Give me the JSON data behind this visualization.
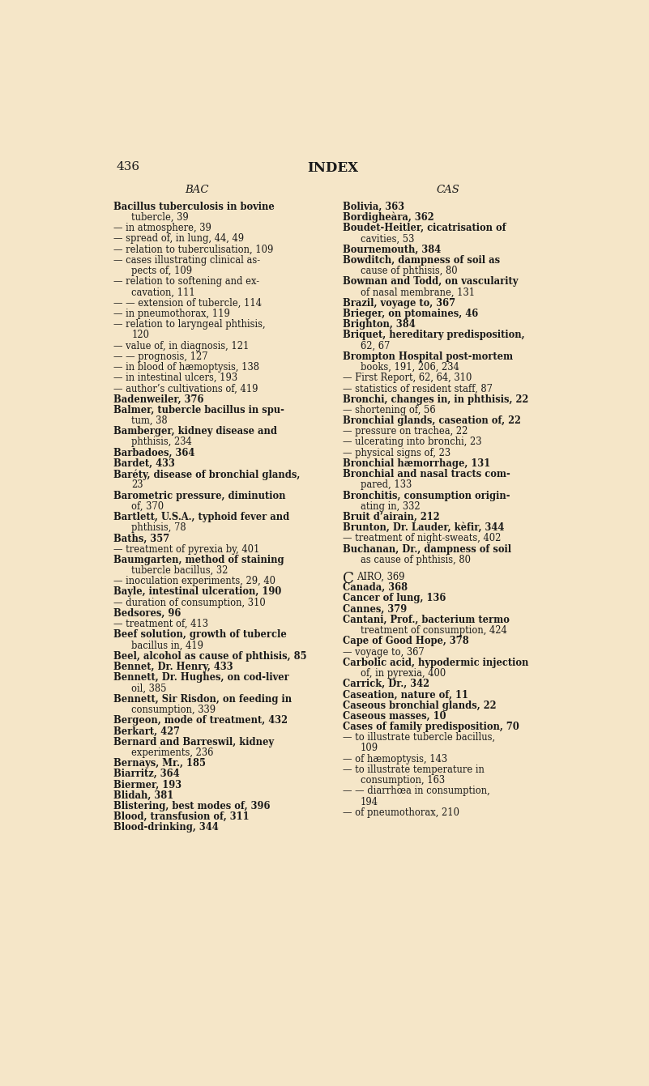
{
  "bg_color": "#f5e6c8",
  "page_number": "436",
  "title_center": "INDEX",
  "left_header": "BAC",
  "right_header": "CAS",
  "left_col_lines": [
    {
      "text": "Bacillus tuberculosis in bovine",
      "bold": true,
      "indent": 0
    },
    {
      "text": "tubercle, 39",
      "bold": false,
      "indent": 1
    },
    {
      "text": "— in atmosphere, 39",
      "bold": false,
      "indent": 0
    },
    {
      "text": "— spread of, in lung, 44, 49",
      "bold": false,
      "indent": 0
    },
    {
      "text": "— relation to tuberculisation, 109",
      "bold": false,
      "indent": 0
    },
    {
      "text": "— cases illustrating clinical as-",
      "bold": false,
      "indent": 0
    },
    {
      "text": "pects of, 109",
      "bold": false,
      "indent": 1
    },
    {
      "text": "— relation to softening and ex-",
      "bold": false,
      "indent": 0
    },
    {
      "text": "cavation, 111",
      "bold": false,
      "indent": 1
    },
    {
      "text": "— — extension of tubercle, 114",
      "bold": false,
      "indent": 0
    },
    {
      "text": "— in pneumothorax, 119",
      "bold": false,
      "indent": 0
    },
    {
      "text": "— relation to laryngeal phthisis,",
      "bold": false,
      "indent": 0
    },
    {
      "text": "120",
      "bold": false,
      "indent": 1
    },
    {
      "text": "— value of, in diagnosis, 121",
      "bold": false,
      "indent": 0
    },
    {
      "text": "— — prognosis, 127",
      "bold": false,
      "indent": 0
    },
    {
      "text": "— in blood of hæmoptysis, 138",
      "bold": false,
      "indent": 0
    },
    {
      "text": "— in intestinal ulcers, 193",
      "bold": false,
      "indent": 0
    },
    {
      "text": "— author’s cultivations of, 419",
      "bold": false,
      "indent": 0
    },
    {
      "text": "Badenweiler, 376",
      "bold": true,
      "indent": 0
    },
    {
      "text": "Balmer, tubercle bacillus in spu-",
      "bold": true,
      "indent": 0
    },
    {
      "text": "tum, 38",
      "bold": false,
      "indent": 1
    },
    {
      "text": "Bamberger, kidney disease and",
      "bold": true,
      "indent": 0
    },
    {
      "text": "phthisis, 234",
      "bold": false,
      "indent": 1
    },
    {
      "text": "Barbadoes, 364",
      "bold": true,
      "indent": 0
    },
    {
      "text": "Bardet, 433",
      "bold": true,
      "indent": 0
    },
    {
      "text": "Baréty, disease of bronchial glands,",
      "bold": true,
      "indent": 0
    },
    {
      "text": "23",
      "bold": false,
      "indent": 1
    },
    {
      "text": "Barometric pressure, diminution",
      "bold": true,
      "indent": 0
    },
    {
      "text": "of, 370",
      "bold": false,
      "indent": 1
    },
    {
      "text": "Bartlett, U.S.A., typhoid fever and",
      "bold": true,
      "indent": 0
    },
    {
      "text": "phthisis, 78",
      "bold": false,
      "indent": 1
    },
    {
      "text": "Baths, 357",
      "bold": true,
      "indent": 0
    },
    {
      "text": "— treatment of pyrexia by, 401",
      "bold": false,
      "indent": 0
    },
    {
      "text": "Baumgarten, method of staining",
      "bold": true,
      "indent": 0
    },
    {
      "text": "tubercle bacillus, 32",
      "bold": false,
      "indent": 1
    },
    {
      "text": "— inoculation experiments, 29, 40",
      "bold": false,
      "indent": 0
    },
    {
      "text": "Bayle, intestinal ulceration, 190",
      "bold": true,
      "indent": 0
    },
    {
      "text": "— duration of consumption, 310",
      "bold": false,
      "indent": 0
    },
    {
      "text": "Bedsores, 96",
      "bold": true,
      "indent": 0
    },
    {
      "text": "— treatment of, 413",
      "bold": false,
      "indent": 0
    },
    {
      "text": "Beef solution, growth of tubercle",
      "bold": true,
      "indent": 0
    },
    {
      "text": "bacillus in, 419",
      "bold": false,
      "indent": 1
    },
    {
      "text": "Beel, alcohol as cause of phthisis, 85",
      "bold": true,
      "indent": 0
    },
    {
      "text": "Bennet, Dr. Henry, 433",
      "bold": true,
      "indent": 0
    },
    {
      "text": "Bennett, Dr. Hughes, on cod-liver",
      "bold": true,
      "indent": 0
    },
    {
      "text": "oil, 385",
      "bold": false,
      "indent": 1
    },
    {
      "text": "Bennett, Sir Risdon, on feeding in",
      "bold": true,
      "indent": 0
    },
    {
      "text": "consumption, 339",
      "bold": false,
      "indent": 1
    },
    {
      "text": "Bergeon, mode of treatment, 432",
      "bold": true,
      "indent": 0
    },
    {
      "text": "Berkart, 427",
      "bold": true,
      "indent": 0
    },
    {
      "text": "Bernard and Barreswil, kidney",
      "bold": true,
      "indent": 0
    },
    {
      "text": "experiments, 236",
      "bold": false,
      "indent": 1
    },
    {
      "text": "Bernays, Mr., 185",
      "bold": true,
      "indent": 0
    },
    {
      "text": "Biarritz, 364",
      "bold": true,
      "indent": 0
    },
    {
      "text": "Biermer, 193",
      "bold": true,
      "indent": 0
    },
    {
      "text": "Blidah, 381",
      "bold": true,
      "indent": 0
    },
    {
      "text": "Blistering, best modes of, 396",
      "bold": true,
      "indent": 0
    },
    {
      "text": "Blood, transfusion of, 311",
      "bold": true,
      "indent": 0
    },
    {
      "text": "Blood-drinking, 344",
      "bold": true,
      "indent": 0
    }
  ],
  "right_col_lines": [
    {
      "text": "Bolivia, 363",
      "bold": true,
      "indent": 0
    },
    {
      "text": "Bordigheàra, 362",
      "bold": true,
      "indent": 0
    },
    {
      "text": "Boudet-Heitler, cicatrisation of",
      "bold": true,
      "indent": 0
    },
    {
      "text": "cavities, 53",
      "bold": false,
      "indent": 1
    },
    {
      "text": "Bournemouth, 384",
      "bold": true,
      "indent": 0
    },
    {
      "text": "Bowditch, dampness of soil as",
      "bold": true,
      "indent": 0
    },
    {
      "text": "cause of phthisis, 80",
      "bold": false,
      "indent": 1
    },
    {
      "text": "Bowman and Todd, on vascularity",
      "bold": true,
      "indent": 0
    },
    {
      "text": "of nasal membrane, 131",
      "bold": false,
      "indent": 1
    },
    {
      "text": "Brazil, voyage to, 367",
      "bold": true,
      "indent": 0
    },
    {
      "text": "Brieger, on ptomaines, 46",
      "bold": true,
      "indent": 0
    },
    {
      "text": "Brighton, 384",
      "bold": true,
      "indent": 0
    },
    {
      "text": "Briquet, hereditary predisposition,",
      "bold": true,
      "indent": 0
    },
    {
      "text": "62, 67",
      "bold": false,
      "indent": 1
    },
    {
      "text": "Brompton Hospital post-mortem",
      "bold": true,
      "indent": 0
    },
    {
      "text": "books, 191, 206, 234",
      "bold": false,
      "indent": 1
    },
    {
      "text": "— First Report, 62, 64, 310",
      "bold": false,
      "indent": 0
    },
    {
      "text": "— statistics of resident staff, 87",
      "bold": false,
      "indent": 0
    },
    {
      "text": "Bronchi, changes in, in phthisis, 22",
      "bold": true,
      "indent": 0
    },
    {
      "text": "— shortening of, 56",
      "bold": false,
      "indent": 0
    },
    {
      "text": "Bronchial glands, caseation of, 22",
      "bold": true,
      "indent": 0
    },
    {
      "text": "— pressure on trachea, 22",
      "bold": false,
      "indent": 0
    },
    {
      "text": "— ulcerating into bronchi, 23",
      "bold": false,
      "indent": 0
    },
    {
      "text": "— physical signs of, 23",
      "bold": false,
      "indent": 0
    },
    {
      "text": "Bronchial hæmorrhage, 131",
      "bold": true,
      "indent": 0
    },
    {
      "text": "Bronchial and nasal tracts com-",
      "bold": true,
      "indent": 0
    },
    {
      "text": "pared, 133",
      "bold": false,
      "indent": 1
    },
    {
      "text": "Bronchitis, consumption origin-",
      "bold": true,
      "indent": 0
    },
    {
      "text": "ating in, 332",
      "bold": false,
      "indent": 1
    },
    {
      "text": "Bruit d’airain, 212",
      "bold": true,
      "indent": 0
    },
    {
      "text": "Brunton, Dr. Lauder, kèfir, 344",
      "bold": true,
      "indent": 0
    },
    {
      "text": "— treatment of night-sweats, 402",
      "bold": false,
      "indent": 0
    },
    {
      "text": "Buchanan, Dr., dampness of soil",
      "bold": true,
      "indent": 0
    },
    {
      "text": "as cause of phthisis, 80",
      "bold": false,
      "indent": 1
    },
    {
      "text": "",
      "bold": false,
      "indent": 0
    },
    {
      "text": "CAIRO, 369",
      "bold": false,
      "indent": 0,
      "special": "C"
    },
    {
      "text": "Canada, 368",
      "bold": true,
      "indent": 0
    },
    {
      "text": "Cancer of lung, 136",
      "bold": true,
      "indent": 0
    },
    {
      "text": "Cannes, 379",
      "bold": true,
      "indent": 0
    },
    {
      "text": "Cantani, Prof., bacterium termo",
      "bold": true,
      "indent": 0
    },
    {
      "text": "treatment of consumption, 424",
      "bold": false,
      "indent": 1
    },
    {
      "text": "Cape of Good Hope, 378",
      "bold": true,
      "indent": 0
    },
    {
      "text": "— voyage to, 367",
      "bold": false,
      "indent": 0
    },
    {
      "text": "Carbolic acid, hypodermic injection",
      "bold": true,
      "indent": 0
    },
    {
      "text": "of, in pyrexia, 400",
      "bold": false,
      "indent": 1
    },
    {
      "text": "Carrick, Dr., 342",
      "bold": true,
      "indent": 0
    },
    {
      "text": "Caseation, nature of, 11",
      "bold": true,
      "indent": 0
    },
    {
      "text": "Caseous bronchial glands, 22",
      "bold": true,
      "indent": 0
    },
    {
      "text": "Caseous masses, 10",
      "bold": true,
      "indent": 0
    },
    {
      "text": "Cases of family predisposition, 70",
      "bold": true,
      "indent": 0
    },
    {
      "text": "— to illustrate tubercle bacillus,",
      "bold": false,
      "indent": 0
    },
    {
      "text": "109",
      "bold": false,
      "indent": 1
    },
    {
      "text": "— of hæmoptysis, 143",
      "bold": false,
      "indent": 0
    },
    {
      "text": "— to illustrate temperature in",
      "bold": false,
      "indent": 0
    },
    {
      "text": "consumption, 163",
      "bold": false,
      "indent": 1
    },
    {
      "text": "— — diarrhœa in consumption,",
      "bold": false,
      "indent": 0
    },
    {
      "text": "194",
      "bold": false,
      "indent": 1
    },
    {
      "text": "— of pneumothorax, 210",
      "bold": false,
      "indent": 0
    }
  ]
}
